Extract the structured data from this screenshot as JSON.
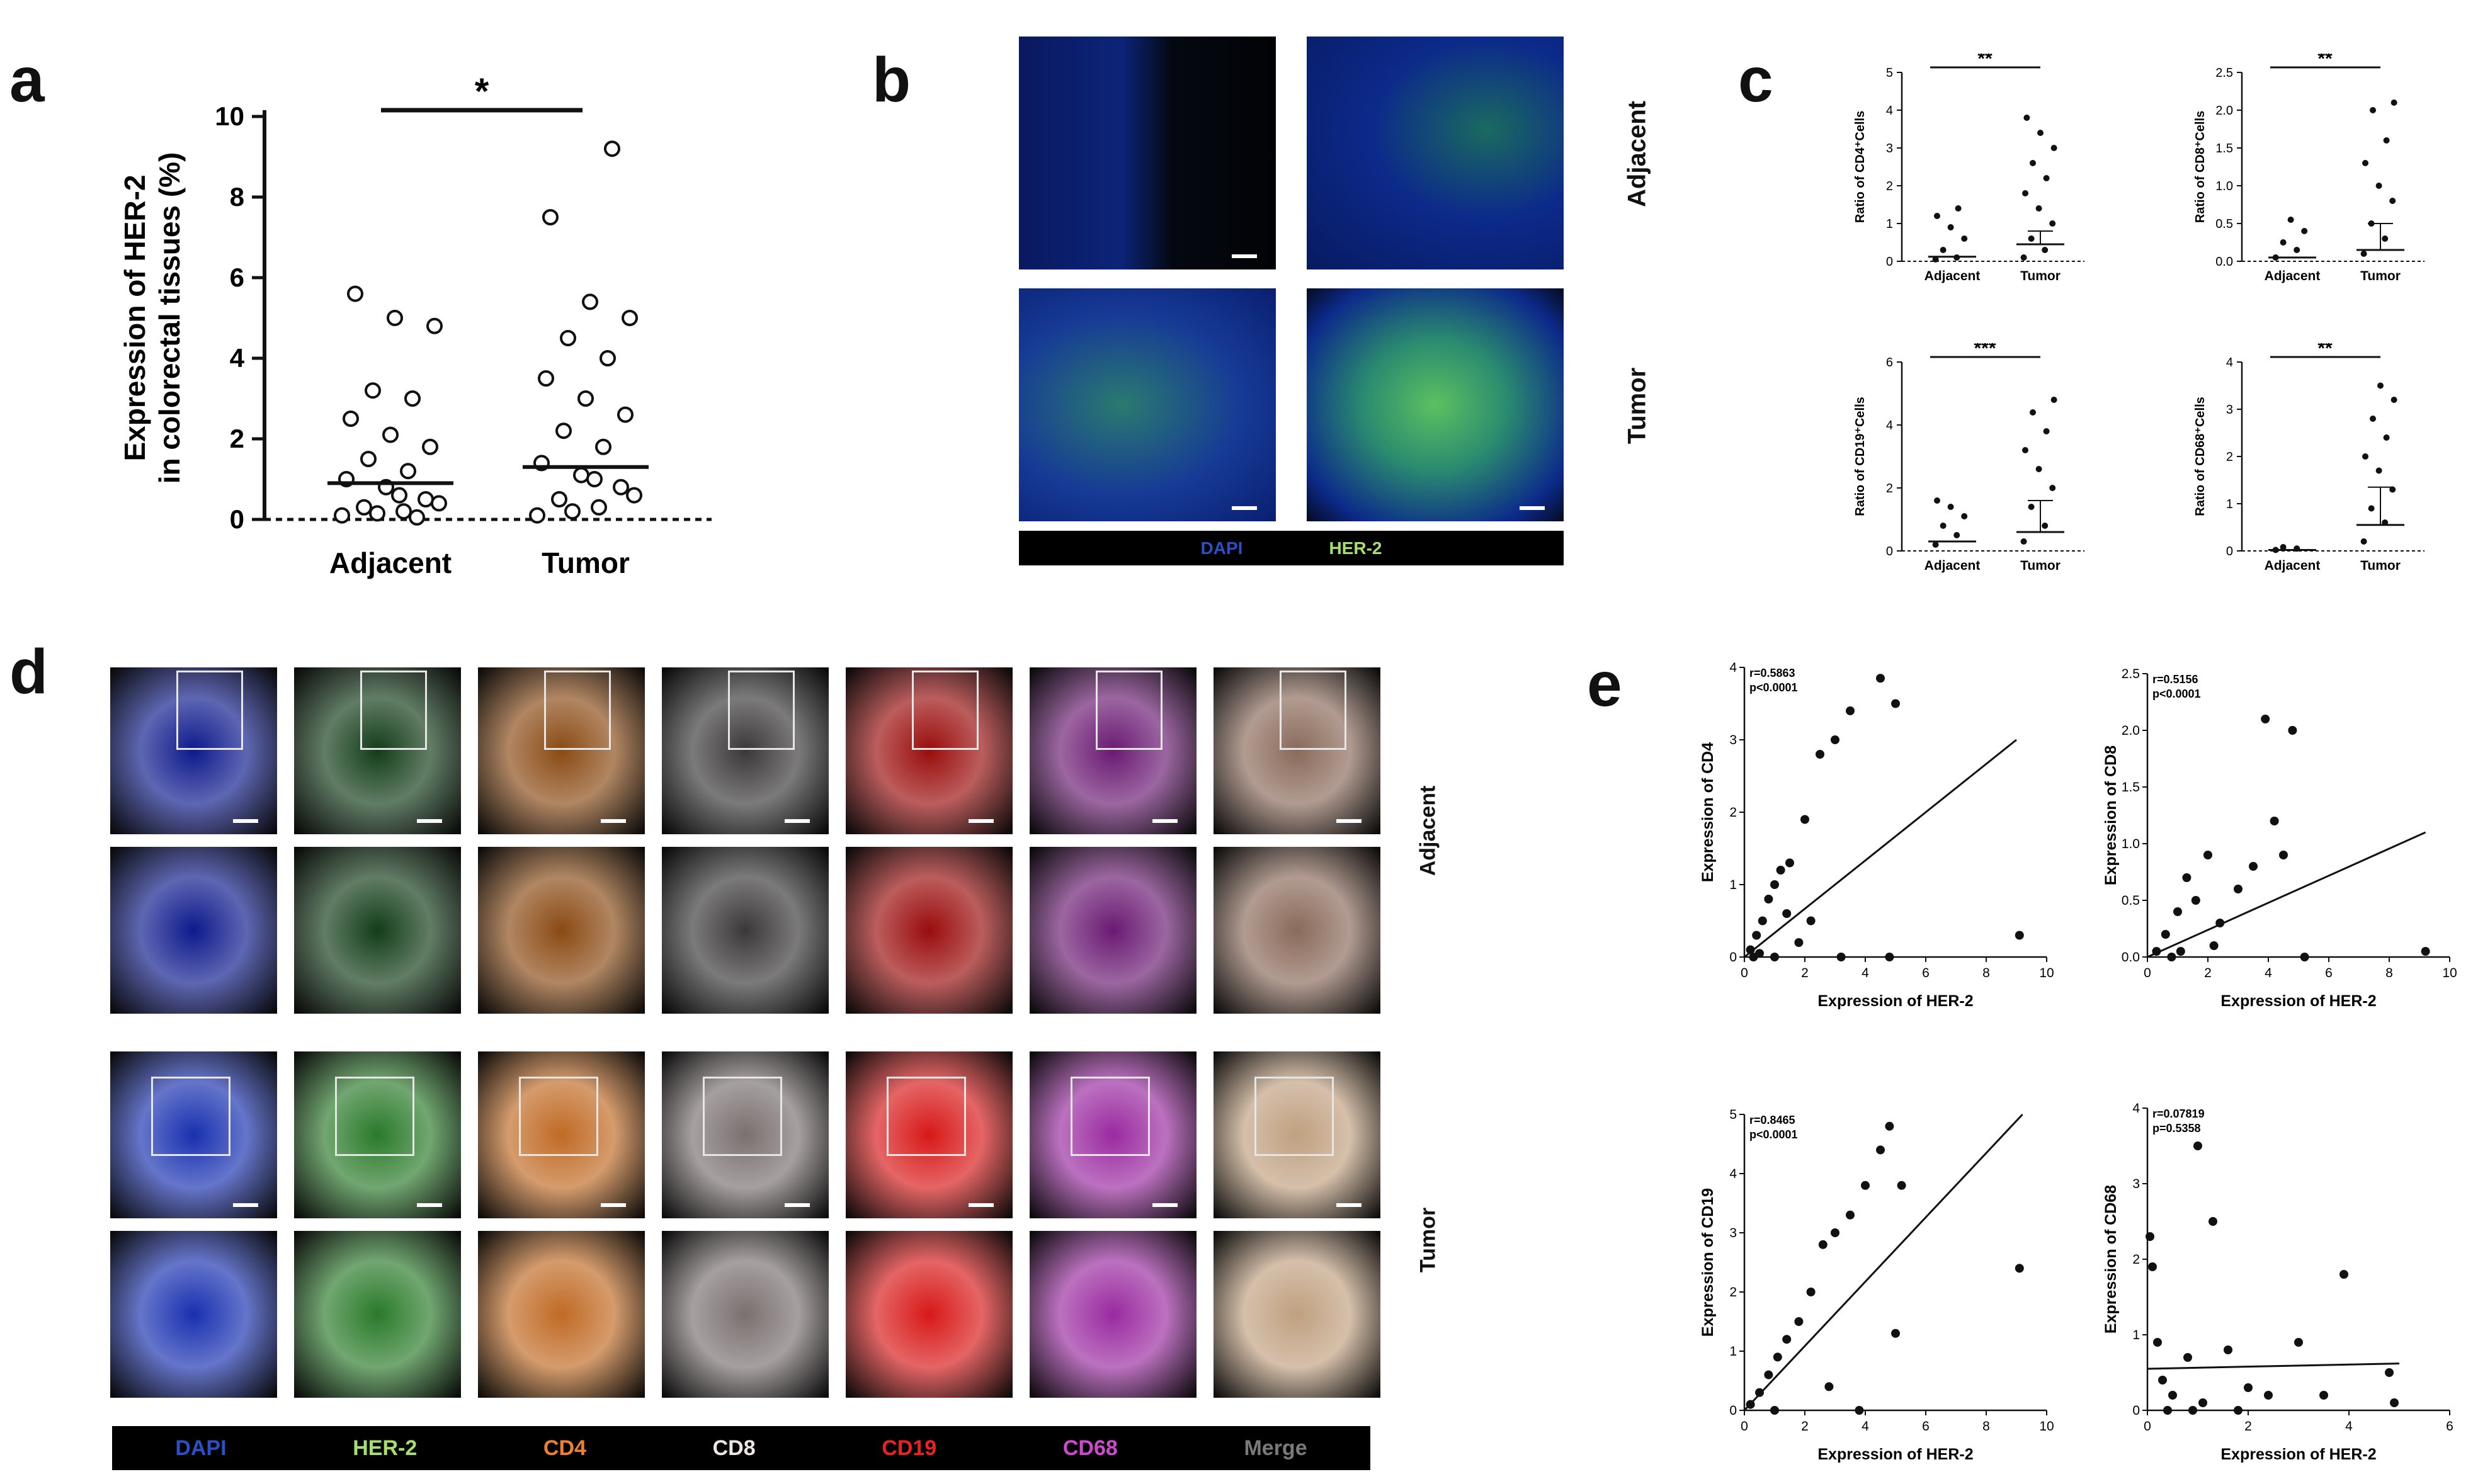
{
  "letters": {
    "a": "a",
    "b": "b",
    "c": "c",
    "d": "d",
    "e": "e"
  },
  "panel_a": {
    "significance": "*",
    "ylabel_line1": "Expression of HER-2",
    "ylabel_line2": "in colorectal tissues (%)",
    "yticks": [
      "0",
      "2",
      "4",
      "6",
      "8",
      "10"
    ],
    "categories": [
      "Adjacent",
      "Tumor"
    ]
  },
  "panel_b": {
    "row_labels": [
      "Adjacent",
      "Tumor"
    ],
    "legend": [
      {
        "text": "DAPI",
        "color": "#2a50c8"
      },
      {
        "text": "HER-2",
        "color": "#a6e06b"
      }
    ]
  },
  "panel_c": {
    "plots": [
      {
        "ylabel": "Ratio of CD4⁺Cells",
        "sig": "**",
        "yticks": [
          "0",
          "1",
          "2",
          "3",
          "4",
          "5"
        ],
        "ymax": 5,
        "adj_mean": 0.12,
        "tum_mean": 0.45,
        "tum_err": 0.35,
        "adj_pts": [
          0.05,
          0.1,
          0.3,
          0.6,
          0.9,
          1.2,
          1.4
        ],
        "tum_pts": [
          0.1,
          0.3,
          0.6,
          1.0,
          1.4,
          1.8,
          2.2,
          2.6,
          3.0,
          3.4,
          3.8
        ]
      },
      {
        "ylabel": "Ratio of CD8⁺Cells",
        "sig": "**",
        "yticks": [
          "0.0",
          "0.5",
          "1.0",
          "1.5",
          "2.0",
          "2.5"
        ],
        "ymax": 2.5,
        "adj_mean": 0.05,
        "tum_mean": 0.15,
        "tum_err": 0.35,
        "adj_pts": [
          0.05,
          0.15,
          0.25,
          0.4,
          0.55
        ],
        "tum_pts": [
          0.1,
          0.3,
          0.5,
          0.8,
          1.0,
          1.3,
          1.6,
          2.0,
          2.1
        ]
      },
      {
        "ylabel": "Ratio of CD19⁺Cells",
        "sig": "***",
        "yticks": [
          "0",
          "2",
          "4",
          "6"
        ],
        "ymax": 6,
        "adj_mean": 0.3,
        "tum_mean": 0.6,
        "tum_err": 1.0,
        "adj_pts": [
          0.2,
          0.5,
          0.8,
          1.1,
          1.4,
          1.6
        ],
        "tum_pts": [
          0.3,
          0.8,
          1.4,
          2.0,
          2.6,
          3.2,
          3.8,
          4.4,
          4.8
        ]
      },
      {
        "ylabel": "Ratio of CD68⁺Cells",
        "sig": "**",
        "yticks": [
          "0",
          "1",
          "2",
          "3",
          "4"
        ],
        "ymax": 4,
        "adj_mean": 0.02,
        "tum_mean": 0.55,
        "tum_err": 0.8,
        "adj_pts": [
          0.02,
          0.05,
          0.08
        ],
        "tum_pts": [
          0.2,
          0.6,
          0.9,
          1.3,
          1.7,
          2.0,
          2.4,
          2.8,
          3.2,
          3.5
        ]
      }
    ],
    "categories": [
      "Adjacent",
      "Tumor"
    ]
  },
  "panel_d": {
    "channels": [
      "DAPI",
      "HER-2",
      "CD4",
      "CD8",
      "CD19",
      "CD68",
      "Merge"
    ],
    "channel_colors": [
      "#2a50c8",
      "#a6e06b",
      "#f08030",
      "#f0e6e6",
      "#ee2020",
      "#d048d0",
      "#7a7a7a"
    ],
    "row_labels": [
      "Adjacent",
      "Tumor"
    ]
  },
  "panel_e": {
    "xlabel": "Expression of HER-2",
    "plots": [
      {
        "ylabel": "Expression of CD4",
        "r": "r=0.5863",
        "p": "p<0.0001",
        "xticks": [
          "0",
          "2",
          "4",
          "6",
          "8",
          "10"
        ],
        "xmax": 10,
        "yticks": [
          "0",
          "1",
          "2",
          "3",
          "4"
        ],
        "ymax": 4,
        "line": [
          [
            0,
            0
          ],
          [
            9,
            3
          ]
        ],
        "pts": [
          [
            0.2,
            0.1
          ],
          [
            0.4,
            0.3
          ],
          [
            0.6,
            0.5
          ],
          [
            0.8,
            0.8
          ],
          [
            1,
            1.0
          ],
          [
            1.2,
            1.2
          ],
          [
            1.5,
            1.3
          ],
          [
            2,
            1.9
          ],
          [
            2.5,
            2.8
          ],
          [
            3,
            3.0
          ],
          [
            3.5,
            3.4
          ],
          [
            4.5,
            3.85
          ],
          [
            5,
            3.5
          ],
          [
            0.5,
            0.05
          ],
          [
            1.0,
            0.0
          ],
          [
            1.8,
            0.2
          ],
          [
            2.2,
            0.5
          ],
          [
            3.2,
            0.0
          ],
          [
            4.8,
            0.0
          ],
          [
            9.1,
            0.3
          ],
          [
            0.3,
            0.0
          ],
          [
            1.4,
            0.6
          ]
        ]
      },
      {
        "ylabel": "Expression of CD8",
        "r": "r=0.5156",
        "p": "p<0.0001",
        "xticks": [
          "0",
          "2",
          "4",
          "6",
          "8",
          "10"
        ],
        "xmax": 10,
        "yticks": [
          "0.0",
          "0.5",
          "1.0",
          "1.5",
          "2.0",
          "2.5"
        ],
        "ymax": 2.5,
        "line": [
          [
            0,
            0
          ],
          [
            9.2,
            1.1
          ]
        ],
        "pts": [
          [
            0.3,
            0.05
          ],
          [
            0.6,
            0.2
          ],
          [
            1.0,
            0.4
          ],
          [
            1.3,
            0.7
          ],
          [
            1.6,
            0.5
          ],
          [
            2,
            0.9
          ],
          [
            2.4,
            0.3
          ],
          [
            3.0,
            0.6
          ],
          [
            3.5,
            0.8
          ],
          [
            3.9,
            2.1
          ],
          [
            4.2,
            1.2
          ],
          [
            4.8,
            2.0
          ],
          [
            4.5,
            0.9
          ],
          [
            5.2,
            0.0
          ],
          [
            9.2,
            0.05
          ],
          [
            0.8,
            0.0
          ],
          [
            1.1,
            0.05
          ],
          [
            2.2,
            0.1
          ]
        ]
      },
      {
        "ylabel": "Expression of CD19",
        "r": "r=0.8465",
        "p": "p<0.0001",
        "xticks": [
          "0",
          "2",
          "4",
          "6",
          "8",
          "10"
        ],
        "xmax": 10,
        "yticks": [
          "0",
          "1",
          "2",
          "3",
          "4",
          "5"
        ],
        "ymax": 5,
        "line": [
          [
            0,
            0
          ],
          [
            9.2,
            5.0
          ]
        ],
        "pts": [
          [
            0.2,
            0.1
          ],
          [
            0.5,
            0.3
          ],
          [
            0.8,
            0.6
          ],
          [
            1.1,
            0.9
          ],
          [
            1.4,
            1.2
          ],
          [
            1.8,
            1.5
          ],
          [
            2.2,
            2.0
          ],
          [
            2.6,
            2.8
          ],
          [
            3.0,
            3.0
          ],
          [
            3.5,
            3.3
          ],
          [
            4,
            3.8
          ],
          [
            4.5,
            4.4
          ],
          [
            4.8,
            4.8
          ],
          [
            5.2,
            3.8
          ],
          [
            9.1,
            2.4
          ],
          [
            5.0,
            1.3
          ],
          [
            3.8,
            0.0
          ],
          [
            2.8,
            0.4
          ],
          [
            1.0,
            0.0
          ]
        ]
      },
      {
        "ylabel": "Expression of CD68",
        "r": "r=0.07819",
        "p": "p=0.5358",
        "xticks": [
          "0",
          "2",
          "4",
          "6"
        ],
        "xmax": 6,
        "yticks": [
          "0",
          "1",
          "2",
          "3",
          "4"
        ],
        "ymax": 4,
        "line": [
          [
            0,
            0.55
          ],
          [
            5,
            0.62
          ]
        ],
        "pts": [
          [
            0.05,
            2.3
          ],
          [
            0.1,
            1.9
          ],
          [
            0.2,
            0.9
          ],
          [
            0.3,
            0.4
          ],
          [
            0.5,
            0.2
          ],
          [
            0.8,
            0.7
          ],
          [
            1.0,
            3.5
          ],
          [
            1.3,
            2.5
          ],
          [
            1.1,
            0.1
          ],
          [
            1.6,
            0.8
          ],
          [
            2.0,
            0.3
          ],
          [
            2.4,
            0.2
          ],
          [
            3.0,
            0.9
          ],
          [
            3.5,
            0.2
          ],
          [
            3.9,
            1.8
          ],
          [
            4.8,
            0.5
          ],
          [
            4.9,
            0.1
          ],
          [
            0.4,
            0.0
          ],
          [
            0.9,
            0.0
          ],
          [
            1.8,
            0.0
          ]
        ]
      }
    ]
  },
  "chart_data": [
    {
      "type": "scatter",
      "panel": "a",
      "ylabel": "Expression of HER-2 in colorectal tissues (%)",
      "categories": [
        "Adjacent",
        "Tumor"
      ],
      "ylim": [
        0,
        10
      ],
      "means": [
        0.9,
        1.3
      ],
      "series": [
        {
          "values": [
            0.1,
            0.2,
            0.3,
            0.5,
            0.8,
            1.0,
            1.2,
            1.5,
            1.8,
            2.1,
            2.5,
            3.0,
            3.2,
            4.8,
            5.0,
            5.6,
            0.05,
            0.15,
            0.4,
            0.6
          ]
        },
        {
          "values": [
            0.1,
            0.3,
            0.5,
            0.8,
            1.1,
            1.4,
            1.8,
            2.2,
            2.6,
            3.0,
            3.5,
            4.0,
            4.5,
            5.0,
            5.4,
            7.5,
            9.2,
            0.2,
            0.6,
            1.0
          ]
        }
      ]
    }
  ]
}
